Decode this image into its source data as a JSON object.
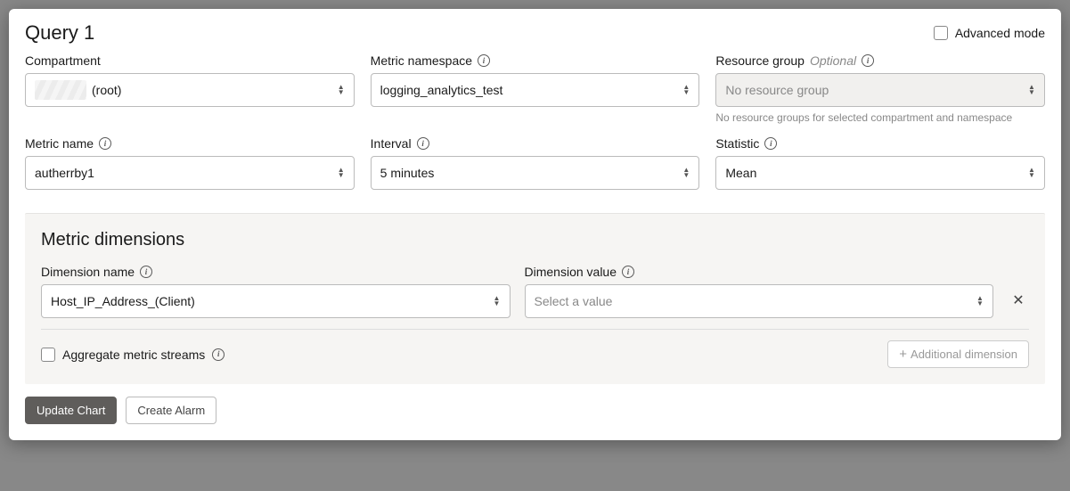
{
  "query": {
    "title": "Query 1",
    "advanced_mode_label": "Advanced mode",
    "advanced_mode_checked": false
  },
  "fields": {
    "compartment": {
      "label": "Compartment",
      "value": "(root)"
    },
    "metric_namespace": {
      "label": "Metric namespace",
      "value": "logging_analytics_test"
    },
    "resource_group": {
      "label": "Resource group",
      "optional_label": "Optional",
      "placeholder": "No resource group",
      "helper": "No resource groups for selected compartment and namespace"
    },
    "metric_name": {
      "label": "Metric name",
      "value": "autherrby1"
    },
    "interval": {
      "label": "Interval",
      "value": "5 minutes"
    },
    "statistic": {
      "label": "Statistic",
      "value": "Mean"
    }
  },
  "dimensions": {
    "section_title": "Metric dimensions",
    "dimension_name_label": "Dimension name",
    "dimension_value_label": "Dimension value",
    "rows": [
      {
        "name": "Host_IP_Address_(Client)",
        "value_placeholder": "Select a value"
      }
    ],
    "aggregate_label": "Aggregate metric streams",
    "aggregate_checked": false,
    "additional_button": "Additional dimension"
  },
  "actions": {
    "update_chart": "Update Chart",
    "create_alarm": "Create Alarm"
  }
}
